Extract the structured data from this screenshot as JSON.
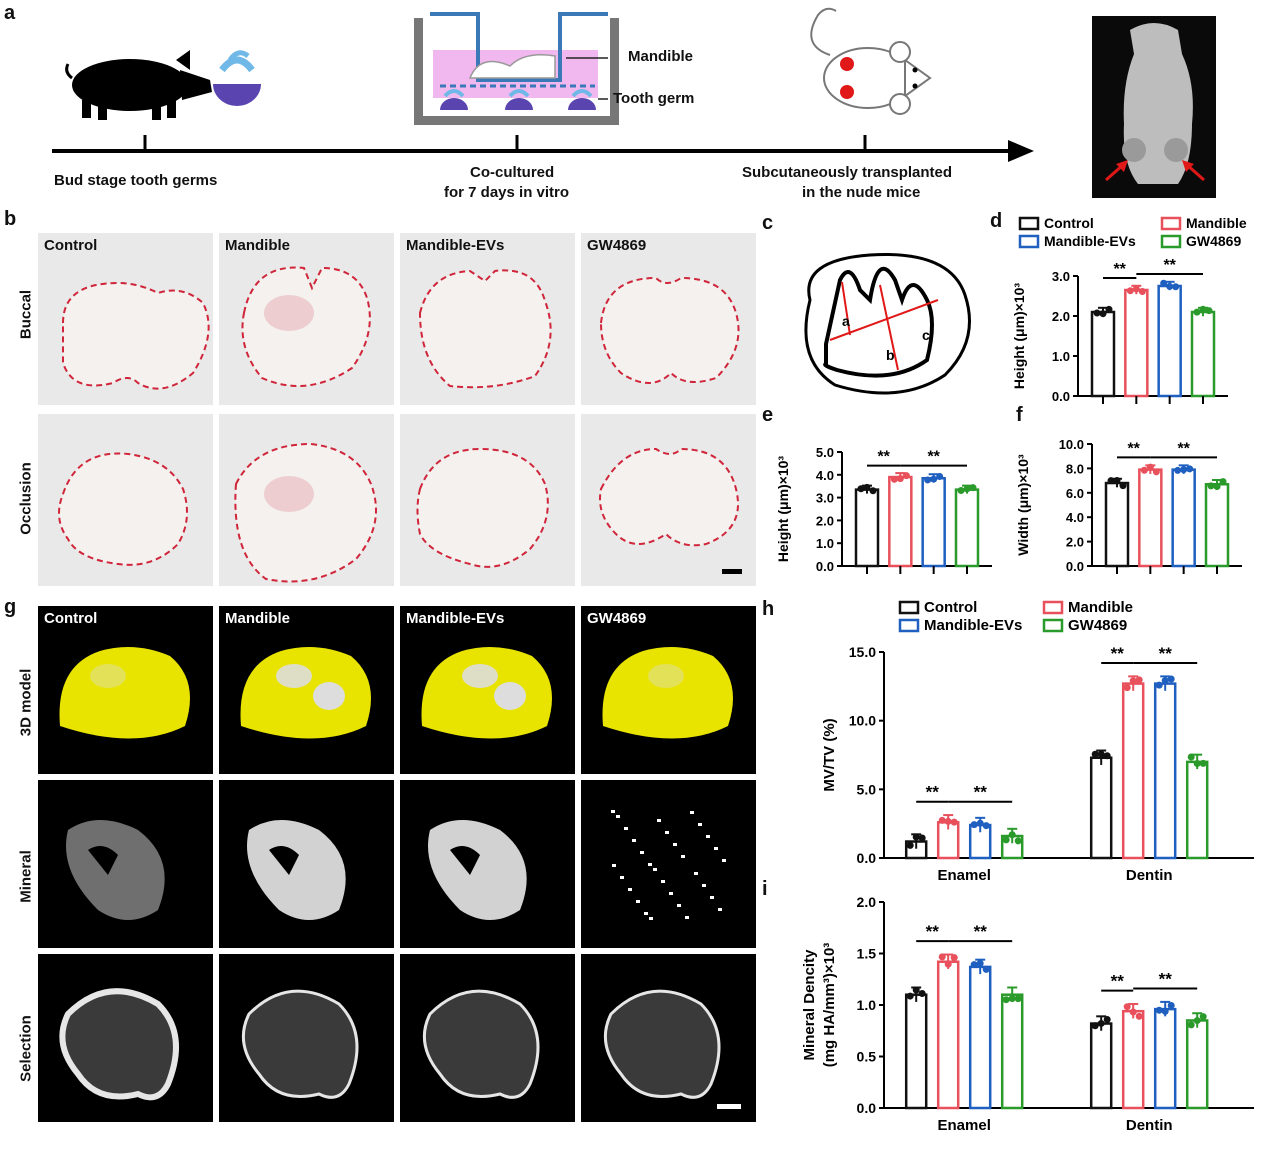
{
  "panels": {
    "a": "a",
    "b": "b",
    "c": "c",
    "d": "d",
    "e": "e",
    "f": "f",
    "g": "g",
    "h": "h",
    "i": "i"
  },
  "panel_a": {
    "step1": "Bud stage tooth germs",
    "step2_l1": "Co-cultured",
    "step2_l2": "for 7 days in vitro",
    "step3_l1": "Subcutaneously transplanted",
    "step3_l2": "in the nude mice",
    "mandible_label": "Mandible",
    "toothgerm_label": "Tooth germ"
  },
  "groups": [
    "Control",
    "Mandible",
    "Mandible-EVs",
    "GW4869"
  ],
  "panel_b": {
    "rows": [
      "Buccal",
      "Occlusion"
    ]
  },
  "panel_c": {
    "labels": [
      "a",
      "b",
      "c"
    ]
  },
  "panel_g": {
    "rows": [
      "3D  model",
      "Mineral",
      "Selection"
    ]
  },
  "colors": {
    "Control": "#111111",
    "Mandible": "#e8505b",
    "Mandible-EVs": "#1f5fbf",
    "GW4869": "#2a9a2a",
    "outline": "#d0253a",
    "yellow": "#e8e400"
  },
  "chart_data": [
    {
      "id": "d",
      "type": "bar",
      "categories": [
        "Control",
        "Mandible",
        "Mandible-EVs",
        "GW4869"
      ],
      "values": [
        2.1,
        2.65,
        2.75,
        2.1
      ],
      "ylabel": "Height (μm)×10³",
      "ylim": [
        0,
        3
      ],
      "yticks": [
        "0.0",
        "1.0",
        "2.0",
        "3.0"
      ],
      "significance": [
        "**",
        "**"
      ],
      "legend": [
        "Control",
        "Mandible",
        "Mandible-EVs",
        "GW4869"
      ]
    },
    {
      "id": "e",
      "type": "bar",
      "categories": [
        "Control",
        "Mandible",
        "Mandible-EVs",
        "GW4869"
      ],
      "values": [
        3.35,
        3.9,
        3.85,
        3.35
      ],
      "ylabel": "Height (μm)×10³",
      "ylim": [
        0,
        5
      ],
      "yticks": [
        "0.0",
        "1.0",
        "2.0",
        "3.0",
        "4.0",
        "5.0"
      ],
      "significance": [
        "**",
        "**"
      ]
    },
    {
      "id": "f",
      "type": "bar",
      "categories": [
        "Control",
        "Mandible",
        "Mandible-EVs",
        "GW4869"
      ],
      "values": [
        6.8,
        7.9,
        7.9,
        6.7
      ],
      "ylabel": "Width (μm)×10³",
      "ylim": [
        0,
        10
      ],
      "yticks": [
        "0.0",
        "2.0",
        "4.0",
        "6.0",
        "8.0",
        "10.0"
      ],
      "significance": [
        "**",
        "**"
      ]
    },
    {
      "id": "h",
      "type": "bar",
      "categories": [
        "Enamel",
        "Dentin"
      ],
      "series": [
        {
          "name": "Control",
          "values": [
            1.2,
            7.3
          ]
        },
        {
          "name": "Mandible",
          "values": [
            2.6,
            12.7
          ]
        },
        {
          "name": "Mandible-EVs",
          "values": [
            2.4,
            12.7
          ]
        },
        {
          "name": "GW4869",
          "values": [
            1.6,
            7.0
          ]
        }
      ],
      "ylabel": "MV/TV (%)",
      "ylim": [
        0,
        15
      ],
      "yticks": [
        "0.0",
        "5.0",
        "10.0",
        "15.0"
      ],
      "significance": [
        "**",
        "**"
      ],
      "legend": [
        "Control",
        "Mandible",
        "Mandible-EVs",
        "GW4869"
      ]
    },
    {
      "id": "i",
      "type": "bar",
      "categories": [
        "Enamel",
        "Dentin"
      ],
      "series": [
        {
          "name": "Control",
          "values": [
            1.1,
            0.82
          ]
        },
        {
          "name": "Mandible",
          "values": [
            1.42,
            0.94
          ]
        },
        {
          "name": "Mandible-EVs",
          "values": [
            1.37,
            0.96
          ]
        },
        {
          "name": "GW4869",
          "values": [
            1.1,
            0.85
          ]
        }
      ],
      "ylabel_l1": "Mineral Dencity",
      "ylabel_l2": "(mg HA/mm³)×10³",
      "ylim": [
        0,
        2
      ],
      "yticks": [
        "0.0",
        "0.5",
        "1.0",
        "1.5",
        "2.0"
      ],
      "significance": [
        "**",
        "**"
      ]
    }
  ]
}
